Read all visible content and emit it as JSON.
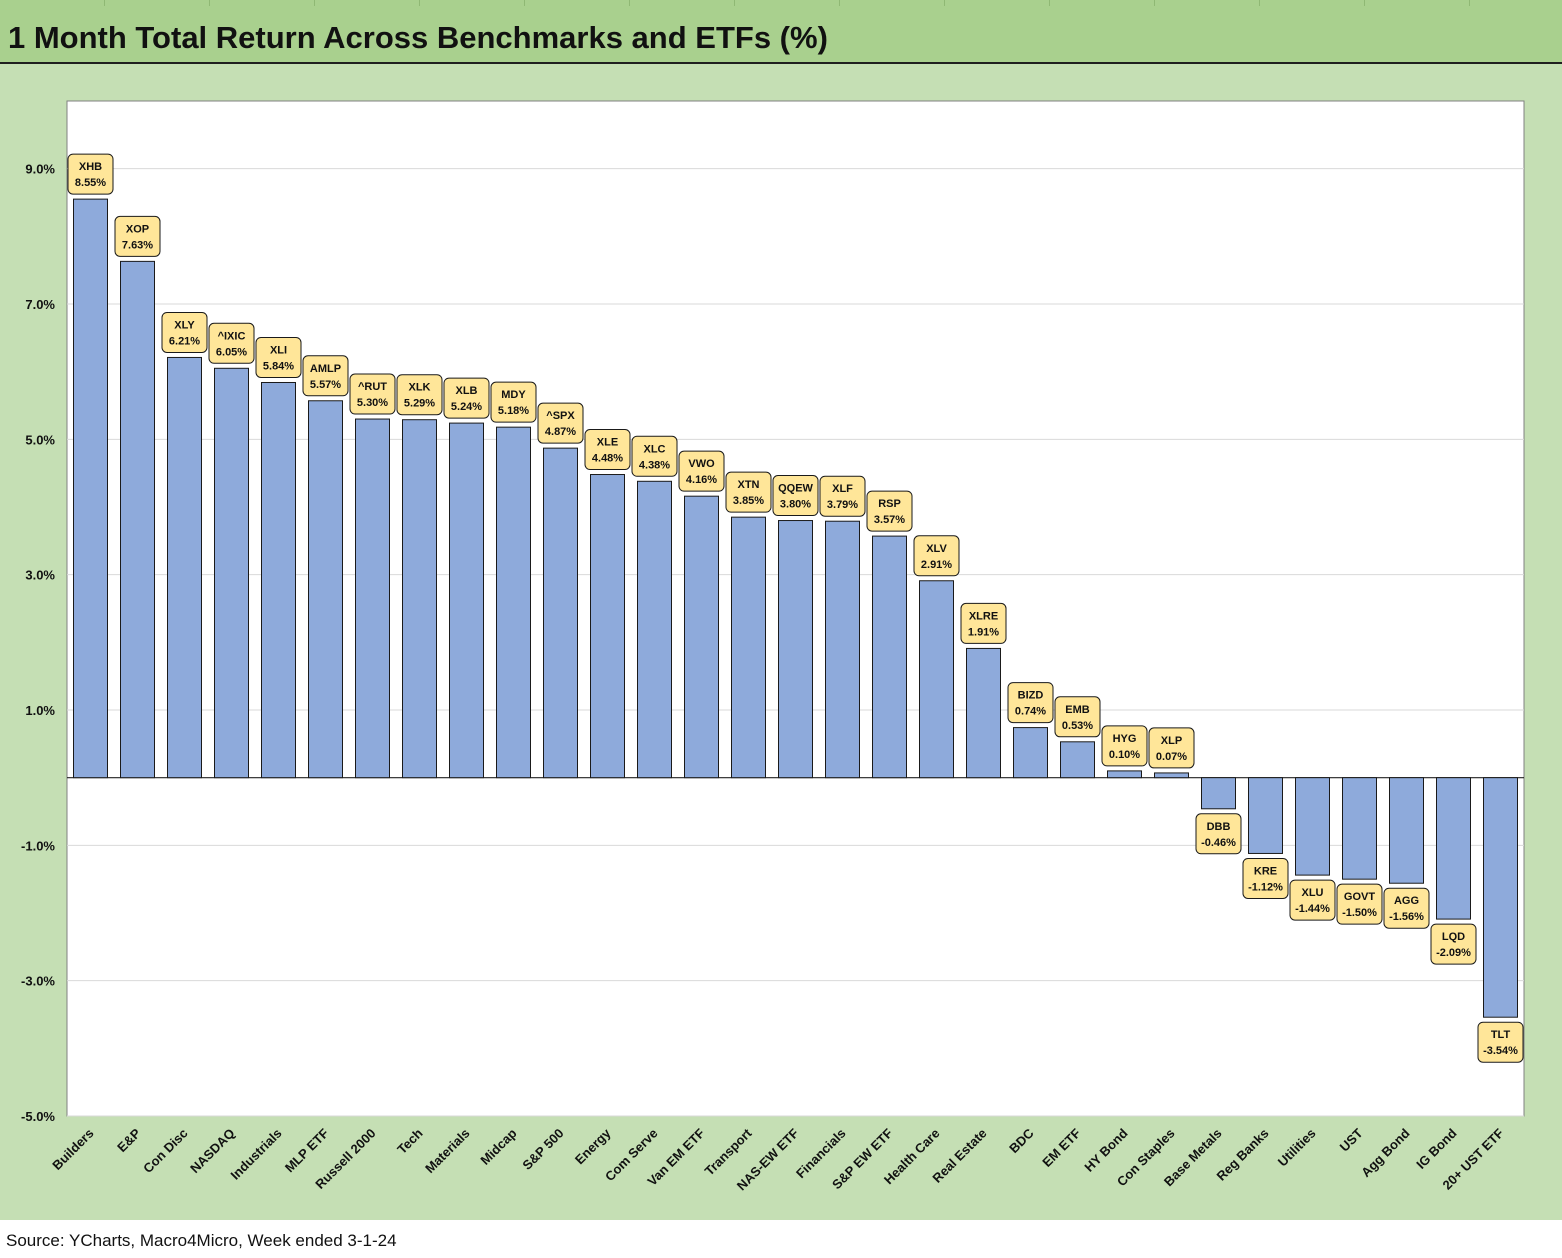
{
  "title": "1 Month Total Return Across Benchmarks and ETFs (%)",
  "source": "Source: YCharts, Macro4Micro, Week ended 3-1-24",
  "colors": {
    "bar_fill": "#8eaadb",
    "bar_stroke": "#1a1a1a",
    "label_fill": "#ffe699",
    "header_green": "#a9d08e",
    "panel_green": "#c5dfb4"
  },
  "chart_data": {
    "type": "bar",
    "title": "1 Month Total Return Across Benchmarks and ETFs (%)",
    "xlabel": "",
    "ylabel": "",
    "ylim": [
      -5.0,
      10.0
    ],
    "y_ticks": [
      "9.0%",
      "7.0%",
      "5.0%",
      "3.0%",
      "1.0%",
      "-1.0%",
      "-3.0%",
      "-5.0%"
    ],
    "y_tick_values": [
      9,
      7,
      5,
      3,
      1,
      -1,
      -3,
      -5
    ],
    "grid": true,
    "categories": [
      "Builders",
      "E&P",
      "Con Disc",
      "NASDAQ",
      "Industrials",
      "MLP ETF",
      "Russell 2000",
      "Tech",
      "Materials",
      "Midcap",
      "S&P 500",
      "Energy",
      "Com Serve",
      "Van EM ETF",
      "Transport",
      "NAS-EW ETF",
      "Financials",
      "S&P EW ETF",
      "Health Care",
      "Real Estate",
      "BDC",
      "EM ETF",
      "HY Bond",
      "Con Staples",
      "Base Metals",
      "Reg Banks",
      "Utilities",
      "UST",
      "Agg Bond",
      "IG Bond",
      "20+ UST ETF"
    ],
    "tickers": [
      "XHB",
      "XOP",
      "XLY",
      "^IXIC",
      "XLI",
      "AMLP",
      "^RUT",
      "XLK",
      "XLB",
      "MDY",
      "^SPX",
      "XLE",
      "XLC",
      "VWO",
      "XTN",
      "QQEW",
      "XLF",
      "RSP",
      "XLV",
      "XLRE",
      "BIZD",
      "EMB",
      "HYG",
      "XLP",
      "DBB",
      "KRE",
      "XLU",
      "GOVT",
      "AGG",
      "LQD",
      "TLT"
    ],
    "value_labels": [
      "8.55%",
      "7.63%",
      "6.21%",
      "6.05%",
      "5.84%",
      "5.57%",
      "5.30%",
      "5.29%",
      "5.24%",
      "5.18%",
      "4.87%",
      "4.48%",
      "4.38%",
      "4.16%",
      "3.85%",
      "3.80%",
      "3.79%",
      "3.57%",
      "2.91%",
      "1.91%",
      "0.74%",
      "0.53%",
      "0.10%",
      "0.07%",
      "-0.46%",
      "-1.12%",
      "-1.44%",
      "-1.50%",
      "-1.56%",
      "-2.09%",
      "-3.54%"
    ],
    "values": [
      8.55,
      7.63,
      6.21,
      6.05,
      5.84,
      5.57,
      5.3,
      5.29,
      5.24,
      5.18,
      4.87,
      4.48,
      4.38,
      4.16,
      3.85,
      3.8,
      3.79,
      3.57,
      2.91,
      1.91,
      0.74,
      0.53,
      0.1,
      0.07,
      -0.46,
      -1.12,
      -1.44,
      -1.5,
      -1.56,
      -2.09,
      -3.54
    ]
  }
}
